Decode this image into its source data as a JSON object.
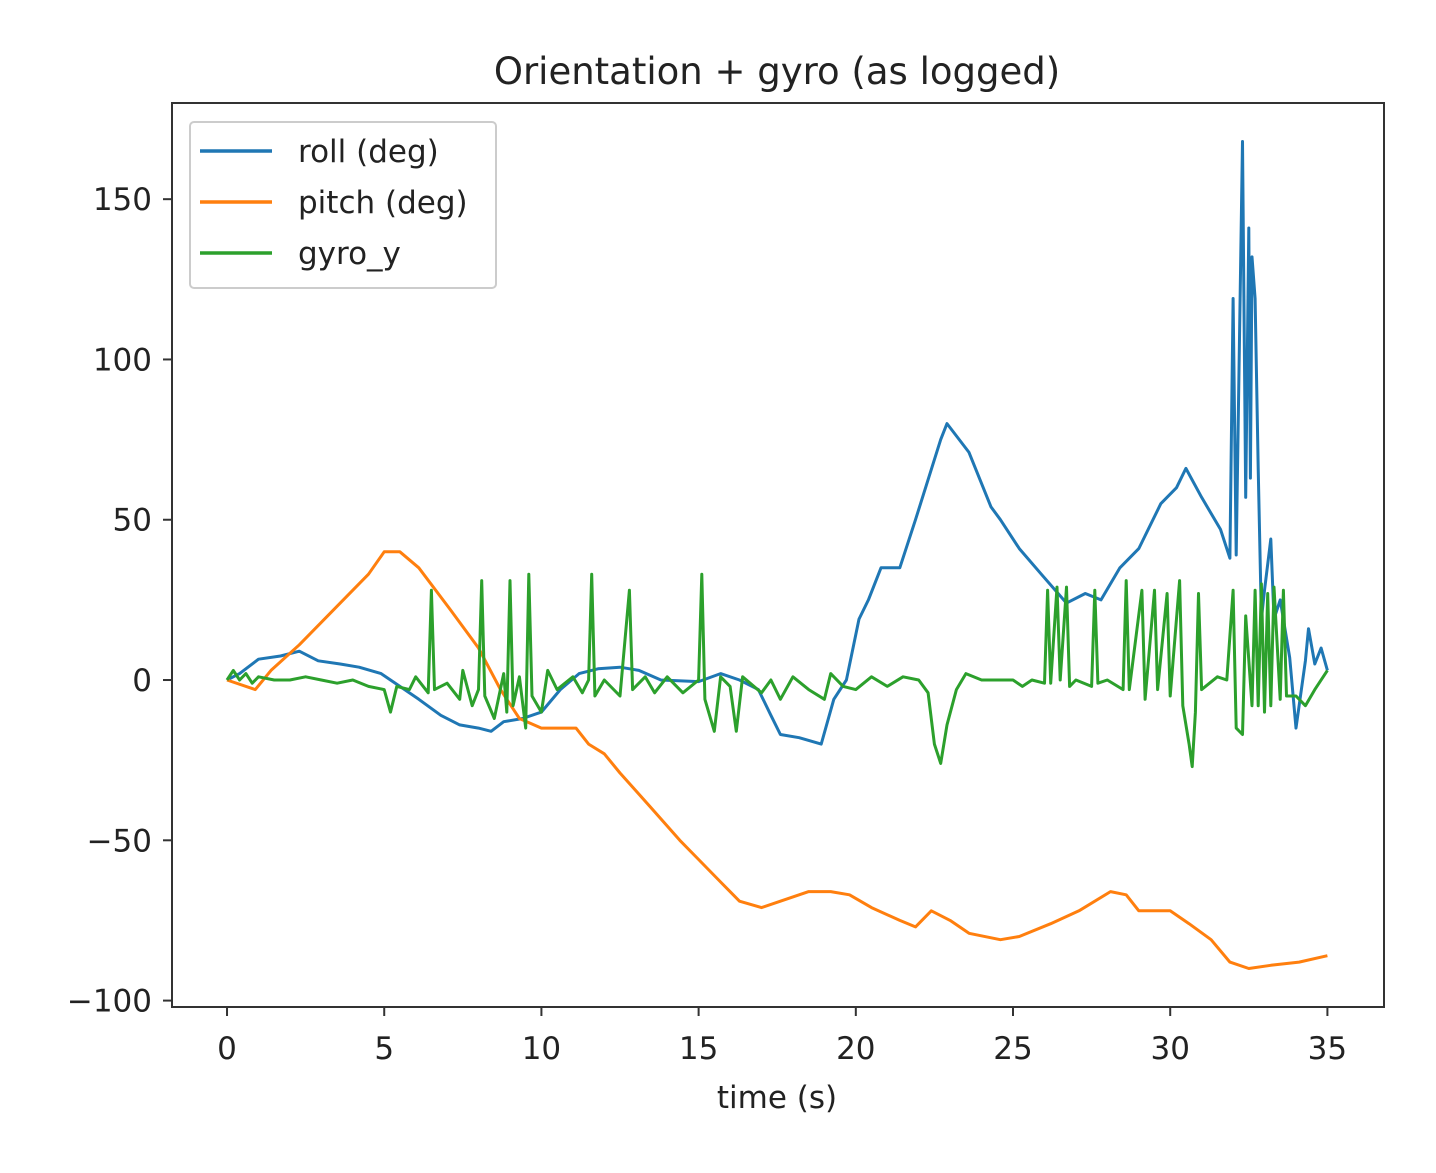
{
  "chart_data": {
    "type": "line",
    "title": "Orientation + gyro (as logged)",
    "xlabel": "time (s)",
    "ylabel": "",
    "xlim": [
      -1.75,
      36.8
    ],
    "ylim": [
      -102,
      180
    ],
    "xticks": [
      0,
      5,
      10,
      15,
      20,
      25,
      30,
      35
    ],
    "xtick_labels": [
      "0",
      "5",
      "10",
      "15",
      "20",
      "25",
      "30",
      "35"
    ],
    "yticks": [
      -100,
      -50,
      0,
      50,
      100,
      150
    ],
    "ytick_labels": [
      "−100",
      "−50",
      "0",
      "50",
      "100",
      "150"
    ],
    "grid": false,
    "legend_position": "top-left",
    "series": [
      {
        "name": "roll (deg)",
        "color": "#1f77b4",
        "points": [
          [
            0,
            0
          ],
          [
            0.4,
            2
          ],
          [
            1.0,
            6.5
          ],
          [
            1.7,
            7.5
          ],
          [
            2.3,
            9
          ],
          [
            2.9,
            6
          ],
          [
            3.6,
            5
          ],
          [
            4.2,
            4
          ],
          [
            4.9,
            2
          ],
          [
            5.2,
            0
          ],
          [
            5.5,
            -2
          ],
          [
            6.1,
            -6
          ],
          [
            6.8,
            -11
          ],
          [
            7.4,
            -14
          ],
          [
            8.0,
            -15
          ],
          [
            8.4,
            -16
          ],
          [
            8.8,
            -13
          ],
          [
            9.4,
            -12
          ],
          [
            10.0,
            -10
          ],
          [
            10.6,
            -3
          ],
          [
            11.2,
            2
          ],
          [
            11.8,
            3.5
          ],
          [
            12.5,
            4
          ],
          [
            13.1,
            3
          ],
          [
            13.8,
            0
          ],
          [
            15.0,
            -0.5
          ],
          [
            15.7,
            2
          ],
          [
            16.3,
            0
          ],
          [
            16.9,
            -3
          ],
          [
            17.3,
            -11
          ],
          [
            17.6,
            -17
          ],
          [
            18.2,
            -18
          ],
          [
            18.9,
            -20
          ],
          [
            19.3,
            -6
          ],
          [
            19.7,
            0
          ],
          [
            20.1,
            19
          ],
          [
            20.4,
            25
          ],
          [
            20.8,
            35
          ],
          [
            21.4,
            35
          ],
          [
            21.9,
            50
          ],
          [
            22.7,
            75
          ],
          [
            22.9,
            80
          ],
          [
            23.6,
            71
          ],
          [
            24.3,
            54
          ],
          [
            24.6,
            50
          ],
          [
            25.2,
            41
          ],
          [
            25.9,
            33
          ],
          [
            26.7,
            24
          ],
          [
            27.3,
            27
          ],
          [
            27.8,
            25
          ],
          [
            28.4,
            35
          ],
          [
            29.0,
            41
          ],
          [
            29.7,
            55
          ],
          [
            30.2,
            60
          ],
          [
            30.5,
            66
          ],
          [
            31.0,
            57
          ],
          [
            31.6,
            47
          ],
          [
            31.9,
            38
          ],
          [
            32.0,
            119
          ],
          [
            32.1,
            39
          ],
          [
            32.3,
            168
          ],
          [
            32.4,
            57
          ],
          [
            32.5,
            141
          ],
          [
            32.55,
            63
          ],
          [
            32.6,
            132
          ],
          [
            32.7,
            119
          ],
          [
            32.8,
            66
          ],
          [
            32.9,
            19
          ],
          [
            33.0,
            28
          ],
          [
            33.2,
            44
          ],
          [
            33.3,
            19
          ],
          [
            33.5,
            25
          ],
          [
            33.8,
            7
          ],
          [
            34.0,
            -15
          ],
          [
            34.3,
            6
          ],
          [
            34.4,
            16
          ],
          [
            34.6,
            5
          ],
          [
            34.8,
            10
          ],
          [
            35.0,
            3
          ]
        ]
      },
      {
        "name": "pitch (deg)",
        "color": "#ff7f0e",
        "points": [
          [
            0,
            0
          ],
          [
            0.9,
            -3
          ],
          [
            1.4,
            3
          ],
          [
            2.3,
            11
          ],
          [
            3.6,
            24
          ],
          [
            4.5,
            33
          ],
          [
            5.0,
            40
          ],
          [
            5.5,
            40
          ],
          [
            6.1,
            35
          ],
          [
            7.1,
            22
          ],
          [
            8.0,
            10
          ],
          [
            8.7,
            -3
          ],
          [
            9.3,
            -12
          ],
          [
            10.0,
            -15
          ],
          [
            10.6,
            -15
          ],
          [
            11.1,
            -15
          ],
          [
            11.5,
            -20
          ],
          [
            12.0,
            -23
          ],
          [
            12.5,
            -29
          ],
          [
            13.5,
            -40
          ],
          [
            14.4,
            -50
          ],
          [
            15.0,
            -56
          ],
          [
            15.7,
            -63
          ],
          [
            16.3,
            -69
          ],
          [
            17.0,
            -71
          ],
          [
            17.6,
            -69
          ],
          [
            18.5,
            -66
          ],
          [
            19.2,
            -66
          ],
          [
            19.8,
            -67
          ],
          [
            20.5,
            -71
          ],
          [
            21.4,
            -75
          ],
          [
            21.9,
            -77
          ],
          [
            22.4,
            -72
          ],
          [
            23.0,
            -75
          ],
          [
            23.6,
            -79
          ],
          [
            24.6,
            -81
          ],
          [
            25.2,
            -80
          ],
          [
            26.2,
            -76
          ],
          [
            27.1,
            -72
          ],
          [
            28.1,
            -66
          ],
          [
            28.6,
            -67
          ],
          [
            29.0,
            -72
          ],
          [
            30.0,
            -72
          ],
          [
            30.6,
            -76
          ],
          [
            31.3,
            -81
          ],
          [
            31.9,
            -88
          ],
          [
            32.5,
            -90
          ],
          [
            33.2,
            -89
          ],
          [
            34.1,
            -88
          ],
          [
            35.0,
            -86
          ]
        ]
      },
      {
        "name": "gyro_y",
        "color": "#2ca02c",
        "points": [
          [
            0,
            0
          ],
          [
            0.2,
            3
          ],
          [
            0.4,
            0
          ],
          [
            0.6,
            2
          ],
          [
            0.8,
            -1
          ],
          [
            1,
            1
          ],
          [
            1.5,
            0
          ],
          [
            2,
            0
          ],
          [
            2.5,
            1
          ],
          [
            3,
            0
          ],
          [
            3.5,
            -1
          ],
          [
            4,
            0
          ],
          [
            4.5,
            -2
          ],
          [
            5,
            -3
          ],
          [
            5.2,
            -10
          ],
          [
            5.4,
            -2
          ],
          [
            5.8,
            -3
          ],
          [
            6,
            1
          ],
          [
            6.4,
            -4
          ],
          [
            6.5,
            28
          ],
          [
            6.6,
            -3
          ],
          [
            7,
            -1
          ],
          [
            7.4,
            -6
          ],
          [
            7.5,
            3
          ],
          [
            7.8,
            -8
          ],
          [
            8,
            -3
          ],
          [
            8.1,
            31
          ],
          [
            8.2,
            -5
          ],
          [
            8.5,
            -12
          ],
          [
            8.8,
            2
          ],
          [
            8.9,
            -10
          ],
          [
            9,
            31
          ],
          [
            9.1,
            -8
          ],
          [
            9.3,
            1
          ],
          [
            9.5,
            -15
          ],
          [
            9.6,
            33
          ],
          [
            9.7,
            -5
          ],
          [
            10,
            -10
          ],
          [
            10.2,
            3
          ],
          [
            10.5,
            -3
          ],
          [
            11,
            1
          ],
          [
            11.3,
            -4
          ],
          [
            11.5,
            0
          ],
          [
            11.6,
            33
          ],
          [
            11.7,
            -5
          ],
          [
            12,
            0
          ],
          [
            12.5,
            -5
          ],
          [
            12.8,
            28
          ],
          [
            12.9,
            -3
          ],
          [
            13.3,
            1
          ],
          [
            13.6,
            -4
          ],
          [
            14,
            1
          ],
          [
            14.5,
            -4
          ],
          [
            15,
            0
          ],
          [
            15.1,
            33
          ],
          [
            15.2,
            -6
          ],
          [
            15.5,
            -16
          ],
          [
            15.7,
            1
          ],
          [
            16,
            -2
          ],
          [
            16.2,
            -16
          ],
          [
            16.4,
            1
          ],
          [
            17,
            -4
          ],
          [
            17.3,
            0
          ],
          [
            17.6,
            -6
          ],
          [
            18,
            1
          ],
          [
            18.5,
            -3
          ],
          [
            19,
            -6
          ],
          [
            19.2,
            2
          ],
          [
            19.6,
            -2
          ],
          [
            20,
            -3
          ],
          [
            20.5,
            1
          ],
          [
            21,
            -2
          ],
          [
            21.5,
            1
          ],
          [
            22,
            0
          ],
          [
            22.3,
            -4
          ],
          [
            22.5,
            -20
          ],
          [
            22.7,
            -26
          ],
          [
            22.9,
            -14
          ],
          [
            23.2,
            -3
          ],
          [
            23.5,
            2
          ],
          [
            24,
            0
          ],
          [
            25,
            0
          ],
          [
            25.3,
            -2
          ],
          [
            25.6,
            0
          ],
          [
            26,
            -1
          ],
          [
            26.1,
            28
          ],
          [
            26.2,
            -1
          ],
          [
            26.4,
            29
          ],
          [
            26.5,
            0
          ],
          [
            26.7,
            29
          ],
          [
            26.8,
            -2
          ],
          [
            27,
            0
          ],
          [
            27.5,
            -2
          ],
          [
            27.6,
            28
          ],
          [
            27.7,
            -1
          ],
          [
            28,
            0
          ],
          [
            28.5,
            -3
          ],
          [
            28.6,
            31
          ],
          [
            28.7,
            -3
          ],
          [
            29.1,
            28
          ],
          [
            29.2,
            -6
          ],
          [
            29.5,
            28
          ],
          [
            29.6,
            -3
          ],
          [
            29.9,
            27
          ],
          [
            30,
            -5
          ],
          [
            30.3,
            31
          ],
          [
            30.4,
            -8
          ],
          [
            30.6,
            -20
          ],
          [
            30.7,
            -27
          ],
          [
            30.8,
            -10
          ],
          [
            30.9,
            27
          ],
          [
            31,
            -3
          ],
          [
            31.5,
            1
          ],
          [
            31.8,
            0
          ],
          [
            32,
            28
          ],
          [
            32.1,
            -15
          ],
          [
            32.3,
            -17
          ],
          [
            32.4,
            20
          ],
          [
            32.6,
            -8
          ],
          [
            32.7,
            28
          ],
          [
            32.8,
            -8
          ],
          [
            32.9,
            30
          ],
          [
            33,
            -10
          ],
          [
            33.1,
            27
          ],
          [
            33.2,
            -8
          ],
          [
            33.3,
            29
          ],
          [
            33.5,
            -6
          ],
          [
            33.6,
            28
          ],
          [
            33.7,
            -5
          ],
          [
            34,
            -5
          ],
          [
            34.3,
            -8
          ],
          [
            34.6,
            -3
          ],
          [
            35,
            3
          ]
        ]
      }
    ]
  }
}
